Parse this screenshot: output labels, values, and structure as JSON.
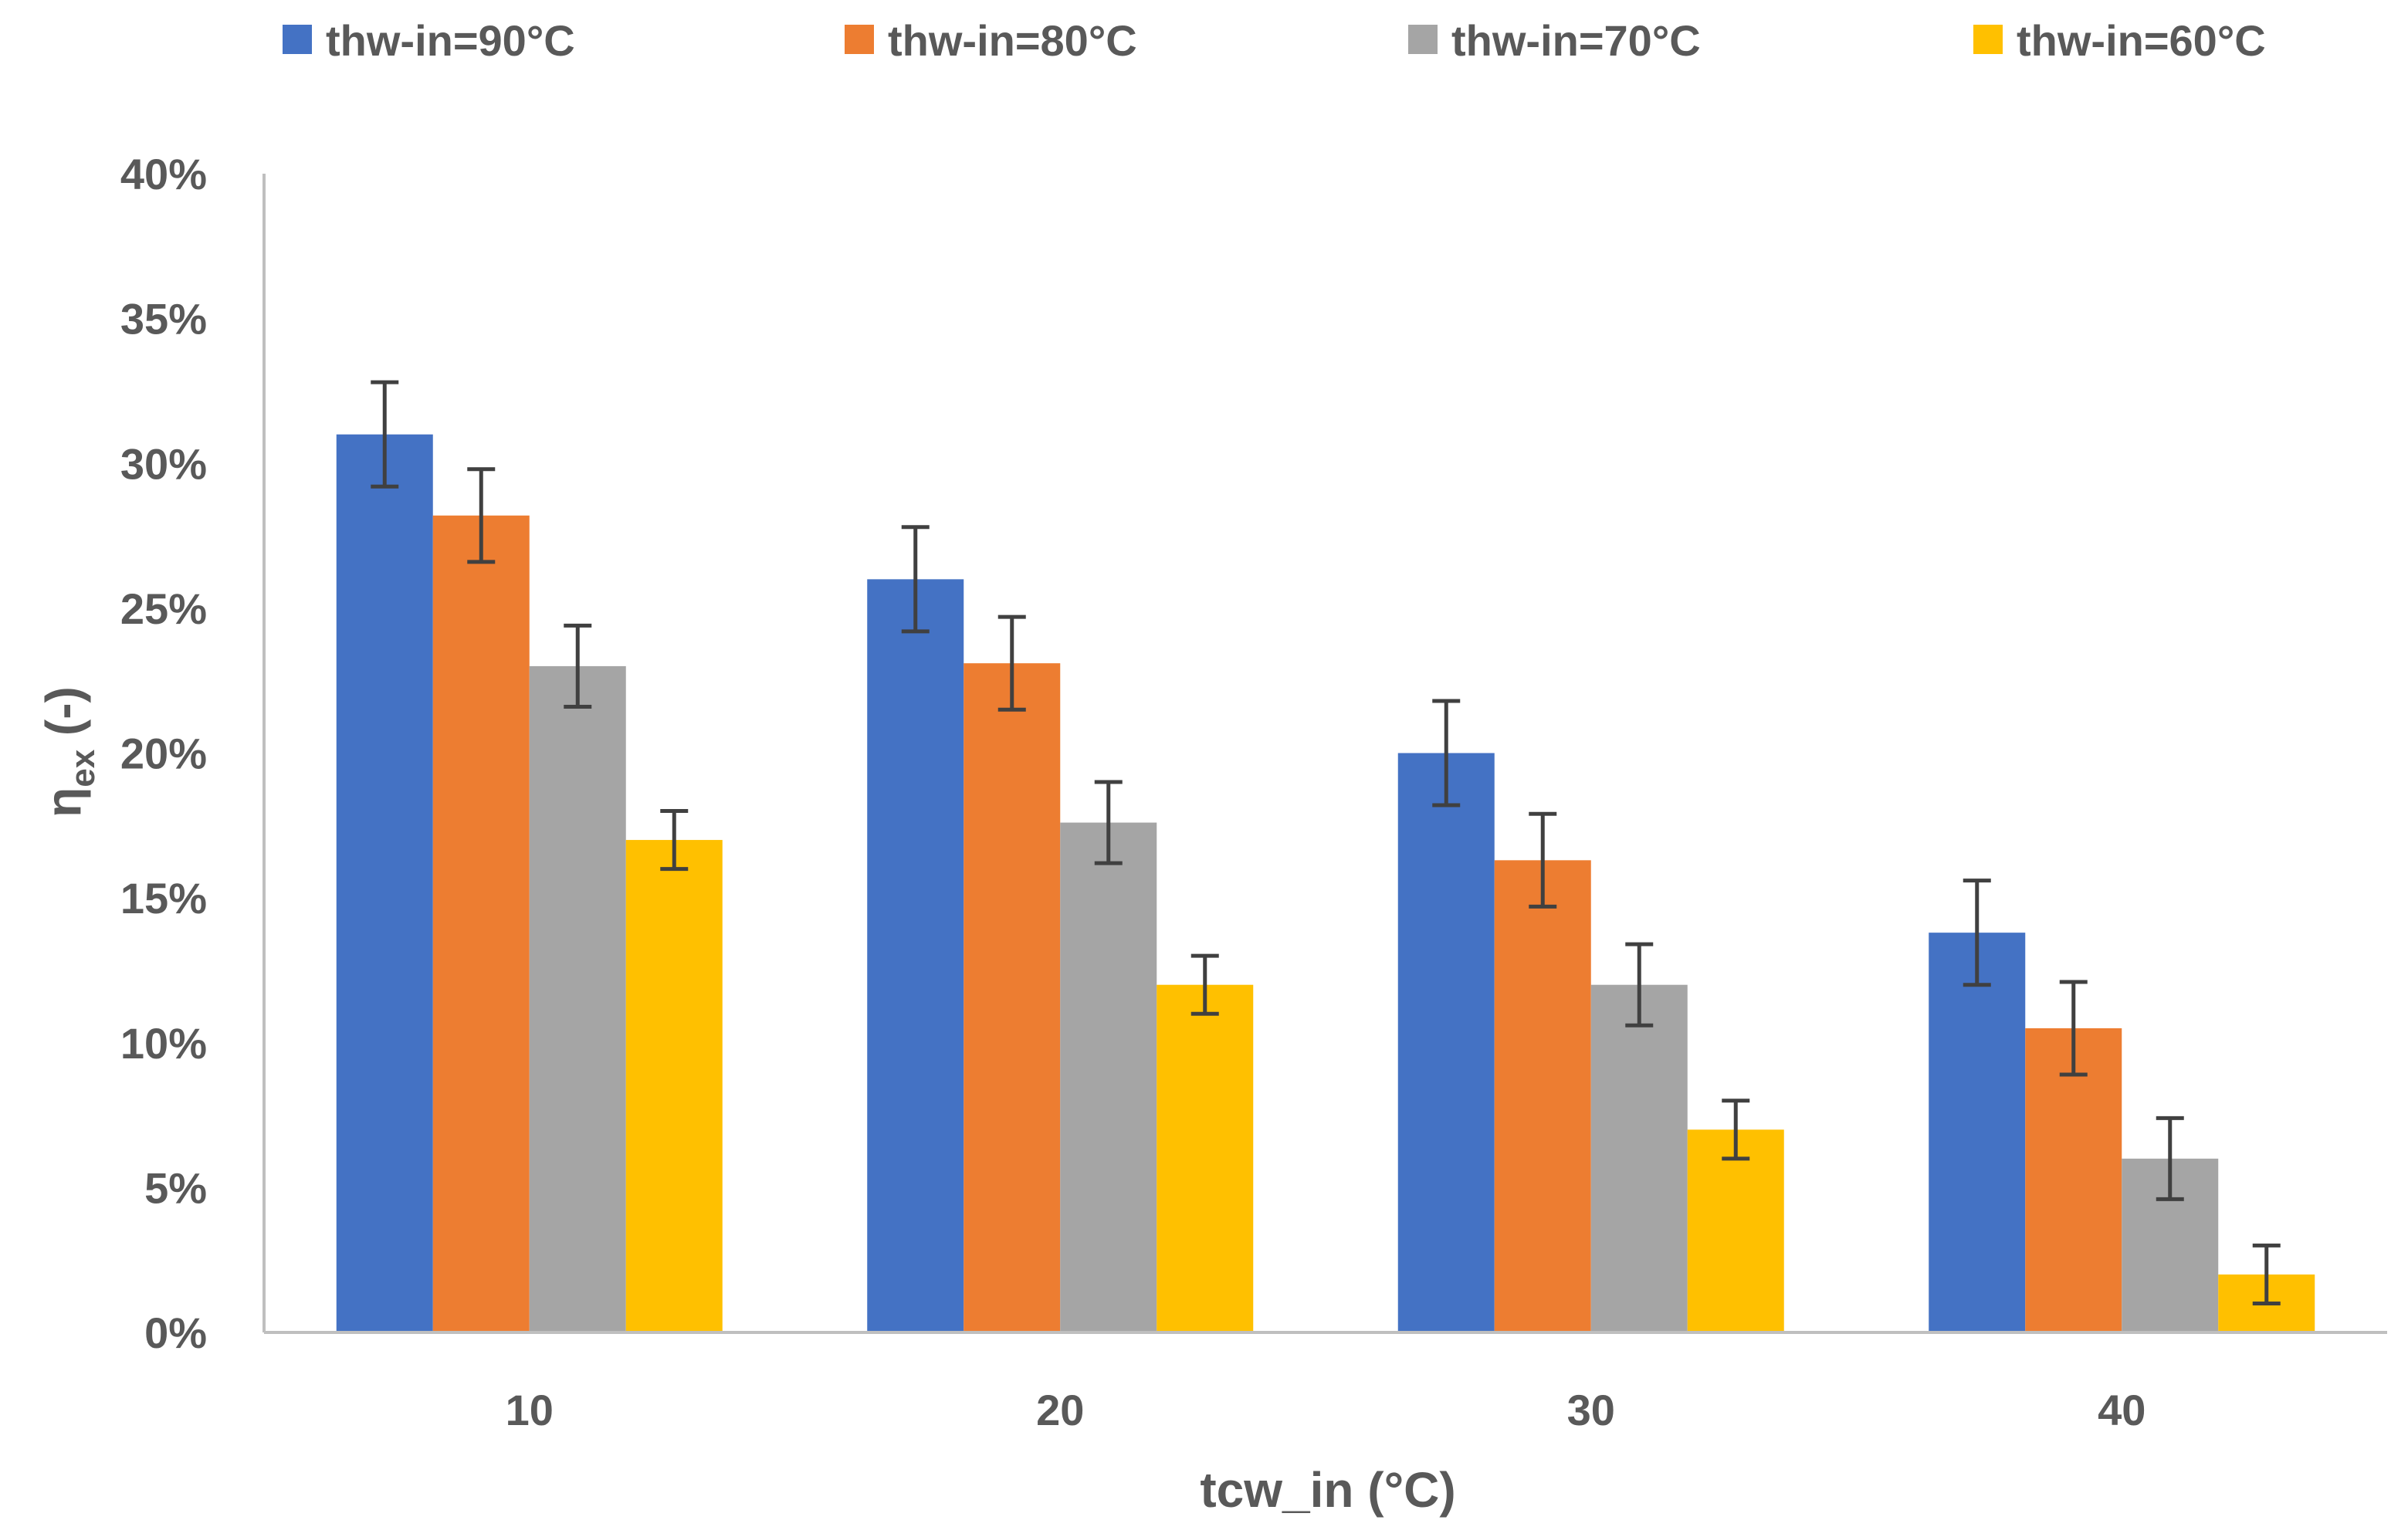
{
  "chart_data": {
    "type": "bar",
    "title": "",
    "xlabel": "tcw_in (°C)",
    "ylabel_main": "η",
    "ylabel_sub": "ex",
    "ylabel_suffix": " (-)",
    "categories": [
      "10",
      "20",
      "30",
      "40"
    ],
    "ylim": [
      0,
      40
    ],
    "yticks": [
      0,
      5,
      10,
      15,
      20,
      25,
      30,
      35,
      40
    ],
    "ytick_labels": [
      "0%",
      "5%",
      "10%",
      "15%",
      "20%",
      "25%",
      "30%",
      "35%",
      "40%"
    ],
    "grid": false,
    "legend_position": "top",
    "series": [
      {
        "name": "thw-in=90°C",
        "color": "#4472C4",
        "values": [
          31.0,
          26.0,
          20.0,
          13.8
        ],
        "errors": [
          1.8,
          1.8,
          1.8,
          1.8
        ]
      },
      {
        "name": "thw-in=80°C",
        "color": "#ED7D31",
        "values": [
          28.2,
          23.1,
          16.3,
          10.5
        ],
        "errors": [
          1.6,
          1.6,
          1.6,
          1.6
        ]
      },
      {
        "name": "thw-in=70°C",
        "color": "#A5A5A5",
        "values": [
          23.0,
          17.6,
          12.0,
          6.0
        ],
        "errors": [
          1.4,
          1.4,
          1.4,
          1.4
        ]
      },
      {
        "name": "thw-in=60°C",
        "color": "#FFC000",
        "values": [
          17.0,
          12.0,
          7.0,
          2.0
        ],
        "errors": [
          1.0,
          1.0,
          1.0,
          1.0
        ]
      }
    ]
  }
}
